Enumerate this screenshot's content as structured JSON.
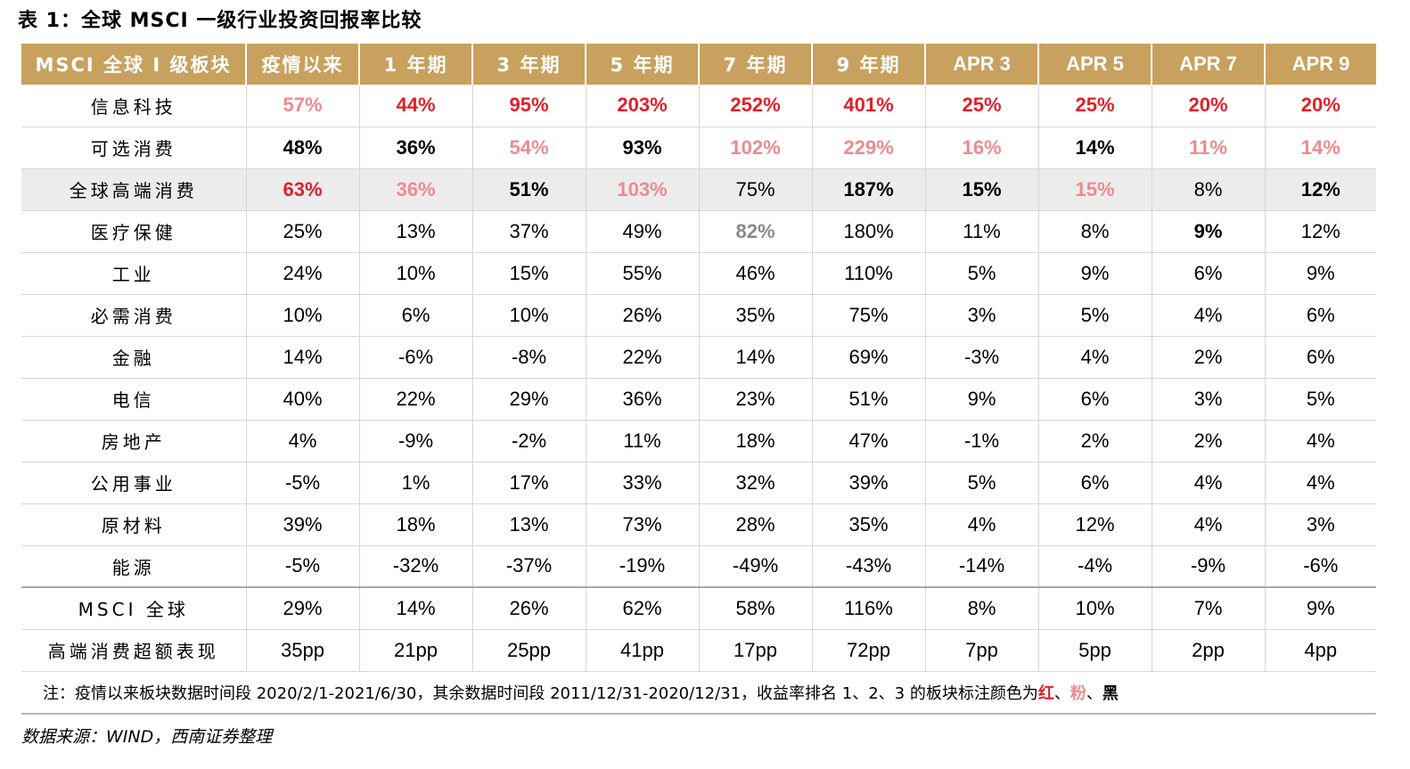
{
  "title": "表 1：全球 MSCI 一级行业投资回报率比较",
  "headers": [
    "MSCI 全球 I 级板块",
    "疫情以来",
    "1 年期",
    "3 年期",
    "5 年期",
    "7 年期",
    "9 年期",
    "APR 3",
    "APR 5",
    "APR 7",
    "APR 9"
  ],
  "rows": [
    {
      "label": "信息科技",
      "cells": [
        {
          "v": "57%",
          "s": "r2"
        },
        {
          "v": "44%",
          "s": "r1"
        },
        {
          "v": "95%",
          "s": "r1"
        },
        {
          "v": "203%",
          "s": "r1"
        },
        {
          "v": "252%",
          "s": "r1"
        },
        {
          "v": "401%",
          "s": "r1"
        },
        {
          "v": "25%",
          "s": "r1"
        },
        {
          "v": "25%",
          "s": "r1"
        },
        {
          "v": "20%",
          "s": "r1"
        },
        {
          "v": "20%",
          "s": "r1"
        }
      ]
    },
    {
      "label": "可选消费",
      "cells": [
        {
          "v": "48%",
          "s": "r3"
        },
        {
          "v": "36%",
          "s": "r3"
        },
        {
          "v": "54%",
          "s": "r2"
        },
        {
          "v": "93%",
          "s": "r3"
        },
        {
          "v": "102%",
          "s": "r2"
        },
        {
          "v": "229%",
          "s": "r2"
        },
        {
          "v": "16%",
          "s": "r2"
        },
        {
          "v": "14%",
          "s": "r3"
        },
        {
          "v": "11%",
          "s": "r2"
        },
        {
          "v": "14%",
          "s": "r2"
        }
      ]
    },
    {
      "label": "全球高端消费",
      "shaded": true,
      "cells": [
        {
          "v": "63%",
          "s": "r1"
        },
        {
          "v": "36%",
          "s": "r2"
        },
        {
          "v": "51%",
          "s": "r3"
        },
        {
          "v": "103%",
          "s": "r2"
        },
        {
          "v": "75%",
          "s": ""
        },
        {
          "v": "187%",
          "s": "r3"
        },
        {
          "v": "15%",
          "s": "r3"
        },
        {
          "v": "15%",
          "s": "r2"
        },
        {
          "v": "8%",
          "s": ""
        },
        {
          "v": "12%",
          "s": "r3"
        }
      ]
    },
    {
      "label": "医疗保健",
      "cells": [
        {
          "v": "25%",
          "s": ""
        },
        {
          "v": "13%",
          "s": ""
        },
        {
          "v": "37%",
          "s": ""
        },
        {
          "v": "49%",
          "s": ""
        },
        {
          "v": "82%",
          "s": "gr"
        },
        {
          "v": "180%",
          "s": ""
        },
        {
          "v": "11%",
          "s": ""
        },
        {
          "v": "8%",
          "s": ""
        },
        {
          "v": "9%",
          "s": "r3"
        },
        {
          "v": "12%",
          "s": ""
        }
      ]
    },
    {
      "label": "工业",
      "cells": [
        {
          "v": "24%",
          "s": ""
        },
        {
          "v": "10%",
          "s": ""
        },
        {
          "v": "15%",
          "s": ""
        },
        {
          "v": "55%",
          "s": ""
        },
        {
          "v": "46%",
          "s": ""
        },
        {
          "v": "110%",
          "s": ""
        },
        {
          "v": "5%",
          "s": ""
        },
        {
          "v": "9%",
          "s": ""
        },
        {
          "v": "6%",
          "s": ""
        },
        {
          "v": "9%",
          "s": ""
        }
      ]
    },
    {
      "label": "必需消费",
      "cells": [
        {
          "v": "10%",
          "s": ""
        },
        {
          "v": "6%",
          "s": ""
        },
        {
          "v": "10%",
          "s": ""
        },
        {
          "v": "26%",
          "s": ""
        },
        {
          "v": "35%",
          "s": ""
        },
        {
          "v": "75%",
          "s": ""
        },
        {
          "v": "3%",
          "s": ""
        },
        {
          "v": "5%",
          "s": ""
        },
        {
          "v": "4%",
          "s": ""
        },
        {
          "v": "6%",
          "s": ""
        }
      ]
    },
    {
      "label": "金融",
      "cells": [
        {
          "v": "14%",
          "s": ""
        },
        {
          "v": "-6%",
          "s": ""
        },
        {
          "v": "-8%",
          "s": ""
        },
        {
          "v": "22%",
          "s": ""
        },
        {
          "v": "14%",
          "s": ""
        },
        {
          "v": "69%",
          "s": ""
        },
        {
          "v": "-3%",
          "s": ""
        },
        {
          "v": "4%",
          "s": ""
        },
        {
          "v": "2%",
          "s": ""
        },
        {
          "v": "6%",
          "s": ""
        }
      ]
    },
    {
      "label": "电信",
      "cells": [
        {
          "v": "40%",
          "s": ""
        },
        {
          "v": "22%",
          "s": ""
        },
        {
          "v": "29%",
          "s": ""
        },
        {
          "v": "36%",
          "s": ""
        },
        {
          "v": "23%",
          "s": ""
        },
        {
          "v": "51%",
          "s": ""
        },
        {
          "v": "9%",
          "s": ""
        },
        {
          "v": "6%",
          "s": ""
        },
        {
          "v": "3%",
          "s": ""
        },
        {
          "v": "5%",
          "s": ""
        }
      ]
    },
    {
      "label": "房地产",
      "cells": [
        {
          "v": "4%",
          "s": ""
        },
        {
          "v": "-9%",
          "s": ""
        },
        {
          "v": "-2%",
          "s": ""
        },
        {
          "v": "11%",
          "s": ""
        },
        {
          "v": "18%",
          "s": ""
        },
        {
          "v": "47%",
          "s": ""
        },
        {
          "v": "-1%",
          "s": ""
        },
        {
          "v": "2%",
          "s": ""
        },
        {
          "v": "2%",
          "s": ""
        },
        {
          "v": "4%",
          "s": ""
        }
      ]
    },
    {
      "label": "公用事业",
      "cells": [
        {
          "v": "-5%",
          "s": ""
        },
        {
          "v": "1%",
          "s": ""
        },
        {
          "v": "17%",
          "s": ""
        },
        {
          "v": "33%",
          "s": ""
        },
        {
          "v": "32%",
          "s": ""
        },
        {
          "v": "39%",
          "s": ""
        },
        {
          "v": "5%",
          "s": ""
        },
        {
          "v": "6%",
          "s": ""
        },
        {
          "v": "4%",
          "s": ""
        },
        {
          "v": "4%",
          "s": ""
        }
      ]
    },
    {
      "label": "原材料",
      "cells": [
        {
          "v": "39%",
          "s": ""
        },
        {
          "v": "18%",
          "s": ""
        },
        {
          "v": "13%",
          "s": ""
        },
        {
          "v": "73%",
          "s": ""
        },
        {
          "v": "28%",
          "s": ""
        },
        {
          "v": "35%",
          "s": ""
        },
        {
          "v": "4%",
          "s": ""
        },
        {
          "v": "12%",
          "s": ""
        },
        {
          "v": "4%",
          "s": ""
        },
        {
          "v": "3%",
          "s": ""
        }
      ]
    },
    {
      "label": "能源",
      "cells": [
        {
          "v": "-5%",
          "s": ""
        },
        {
          "v": "-32%",
          "s": ""
        },
        {
          "v": "-37%",
          "s": ""
        },
        {
          "v": "-19%",
          "s": ""
        },
        {
          "v": "-49%",
          "s": ""
        },
        {
          "v": "-43%",
          "s": ""
        },
        {
          "v": "-14%",
          "s": ""
        },
        {
          "v": "-4%",
          "s": ""
        },
        {
          "v": "-9%",
          "s": ""
        },
        {
          "v": "-6%",
          "s": ""
        }
      ]
    },
    {
      "label": "MSCI 全球",
      "sep": true,
      "cells": [
        {
          "v": "29%",
          "s": ""
        },
        {
          "v": "14%",
          "s": ""
        },
        {
          "v": "26%",
          "s": ""
        },
        {
          "v": "62%",
          "s": ""
        },
        {
          "v": "58%",
          "s": ""
        },
        {
          "v": "116%",
          "s": ""
        },
        {
          "v": "8%",
          "s": ""
        },
        {
          "v": "10%",
          "s": ""
        },
        {
          "v": "7%",
          "s": ""
        },
        {
          "v": "9%",
          "s": ""
        }
      ]
    },
    {
      "label": "高端消费超额表现",
      "cells": [
        {
          "v": "35pp",
          "s": ""
        },
        {
          "v": "21pp",
          "s": ""
        },
        {
          "v": "25pp",
          "s": ""
        },
        {
          "v": "41pp",
          "s": ""
        },
        {
          "v": "17pp",
          "s": ""
        },
        {
          "v": "72pp",
          "s": ""
        },
        {
          "v": "7pp",
          "s": ""
        },
        {
          "v": "5pp",
          "s": ""
        },
        {
          "v": "2pp",
          "s": ""
        },
        {
          "v": "4pp",
          "s": ""
        }
      ]
    }
  ],
  "note": {
    "text": "注：疫情以来板块数据时间段 2020/2/1-2021/6/30，其余数据时间段 2011/12/31-2020/12/31，收益率排名 1、2、3 的板块标注颜色为",
    "red": "红",
    "sep1": "、",
    "pink": "粉",
    "sep2": "、",
    "black": "黑"
  },
  "source": "数据来源：WIND，西南证券整理",
  "colors": {
    "header_bg": "#c8a15e",
    "rank1_red": "#e0202a",
    "rank2_pink": "#ee8a8e",
    "rank3_black": "#000000",
    "shaded_row": "#ececec"
  }
}
